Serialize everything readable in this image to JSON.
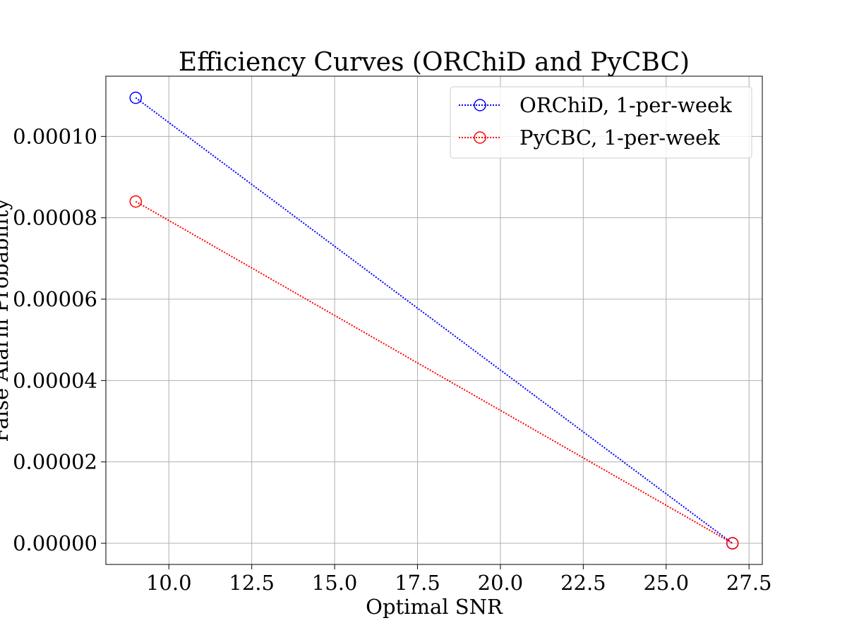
{
  "chart_data": {
    "type": "line",
    "title": "Efficiency Curves (ORChiD and PyCBC)",
    "xlabel": "Optimal SNR",
    "ylabel": "False Alarm Probability",
    "xlim": [
      8.1,
      27.9
    ],
    "ylim": [
      -5.2e-06,
      0.0001148
    ],
    "x_ticks": [
      10.0,
      12.5,
      15.0,
      17.5,
      20.0,
      22.5,
      25.0,
      27.5
    ],
    "x_tick_labels": [
      "10.0",
      "12.5",
      "15.0",
      "17.5",
      "20.0",
      "22.5",
      "25.0",
      "27.5"
    ],
    "y_ticks": [
      0.0,
      2e-05,
      4e-05,
      6e-05,
      8e-05,
      0.0001
    ],
    "y_tick_labels": [
      "0.00000",
      "0.00002",
      "0.00004",
      "0.00006",
      "0.00008",
      "0.00010"
    ],
    "grid": true,
    "legend_position": "top-right",
    "series": [
      {
        "name": "ORChiD, 1-per-week",
        "color": "#0000ff",
        "line_style": "dotted",
        "marker": "hollow-circle",
        "x": [
          9.0,
          27.0
        ],
        "y": [
          0.0001095,
          0.0
        ]
      },
      {
        "name": "PyCBC, 1-per-week",
        "color": "#ff0000",
        "line_style": "dotted",
        "marker": "hollow-circle",
        "x": [
          9.0,
          27.0
        ],
        "y": [
          8.4e-05,
          0.0
        ]
      }
    ]
  }
}
